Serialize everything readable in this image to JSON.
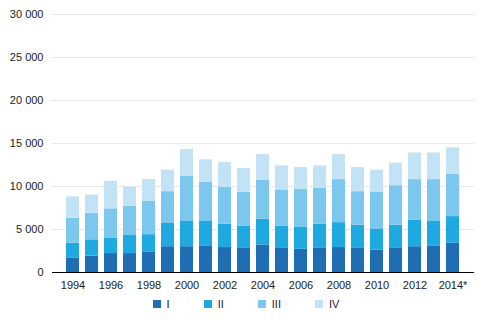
{
  "chart_data": {
    "type": "bar",
    "stacked": true,
    "grid": true,
    "categories": [
      "1994",
      null,
      "1996",
      null,
      "1998",
      null,
      "2000",
      null,
      "2002",
      null,
      "2004",
      null,
      "2006",
      null,
      "2008",
      null,
      "2010",
      null,
      "2012",
      null,
      "2014*"
    ],
    "series": [
      {
        "name": "I",
        "color": "#1f6db3",
        "values": [
          1700,
          1900,
          2200,
          2200,
          2400,
          3000,
          3000,
          3100,
          2900,
          2800,
          3200,
          2800,
          2700,
          2800,
          2900,
          2800,
          2600,
          2800,
          3000,
          3100,
          3400
        ]
      },
      {
        "name": "II",
        "color": "#1fa9e1",
        "values": [
          1700,
          1900,
          1800,
          2100,
          2000,
          2700,
          3000,
          2900,
          2700,
          2600,
          3000,
          2600,
          2600,
          2800,
          2900,
          2700,
          2400,
          2700,
          3100,
          2900,
          3100
        ]
      },
      {
        "name": "III",
        "color": "#7cc7ee",
        "values": [
          2900,
          3100,
          3400,
          3400,
          3900,
          3700,
          5200,
          4500,
          4300,
          3900,
          4500,
          4200,
          4400,
          4200,
          5000,
          3900,
          4300,
          4600,
          4700,
          4800,
          4900
        ]
      },
      {
        "name": "IV",
        "color": "#c2e3f6",
        "values": [
          2500,
          2100,
          3200,
          2200,
          2500,
          2500,
          3100,
          2600,
          2900,
          2800,
          3000,
          2800,
          2500,
          2600,
          2900,
          2800,
          2600,
          2600,
          3100,
          3100,
          3100
        ]
      }
    ],
    "ylim": [
      0,
      30000
    ],
    "yticks": [
      0,
      {
        "value": 5000,
        "label": "5 000"
      },
      {
        "value": 10000,
        "label": "10 000"
      },
      {
        "value": 15000,
        "label": "15 000"
      },
      {
        "value": 20000,
        "label": "20 000"
      },
      {
        "value": 25000,
        "label": "25 000"
      },
      {
        "value": 30000,
        "label": "30 000"
      }
    ]
  }
}
